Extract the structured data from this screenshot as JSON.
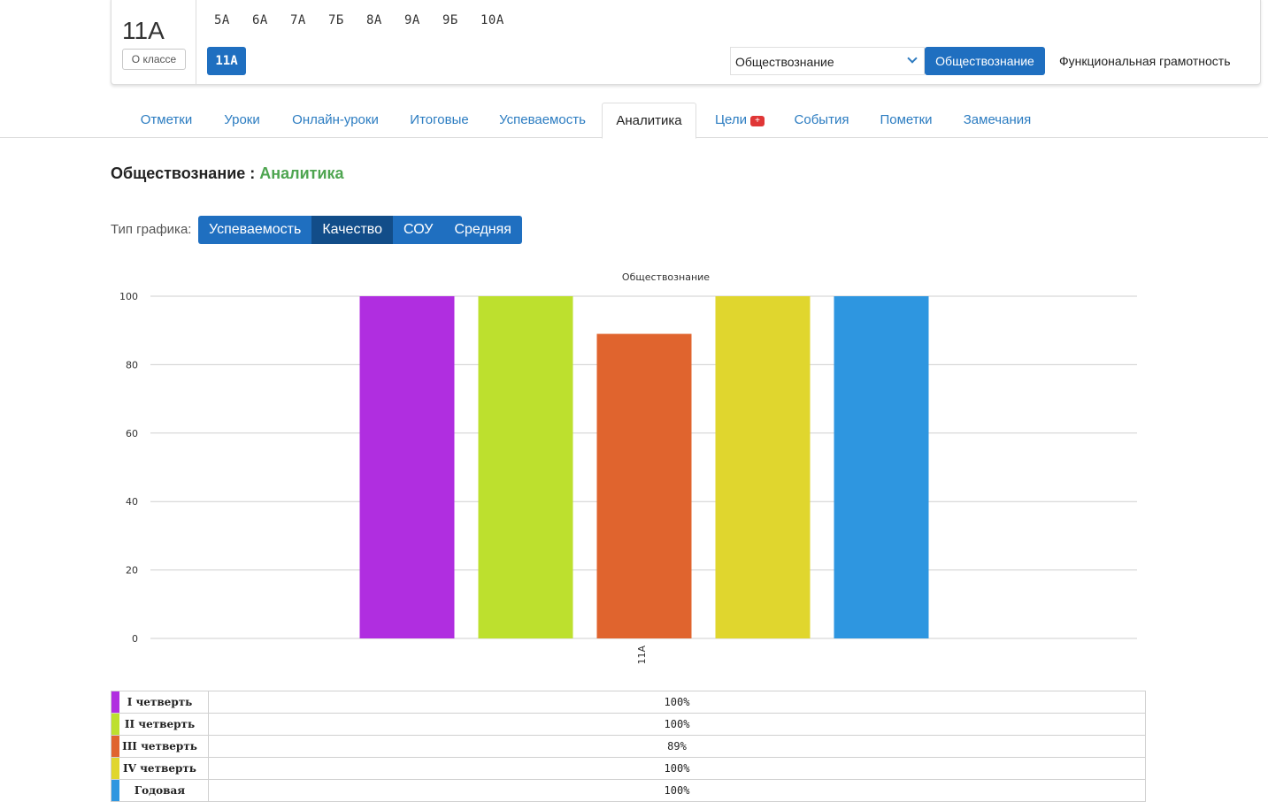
{
  "header": {
    "class_title": "11А",
    "about_button": "О классе",
    "classes": [
      "5А",
      "6А",
      "7А",
      "7Б",
      "8А",
      "9А",
      "9Б",
      "10А"
    ],
    "active_class": "11А",
    "subject_select": "Обществознание",
    "subject_button": "Обществознание",
    "subject_link": "Функциональная грамотность"
  },
  "tabs": [
    "Отметки",
    "Уроки",
    "Онлайн-уроки",
    "Итоговые",
    "Успеваемость",
    "Аналитика",
    "Цели",
    "События",
    "Пометки",
    "Замечания"
  ],
  "active_tab": "Аналитика",
  "page": {
    "title_subject": "Обществознание :",
    "title_section": "Аналитика",
    "chart_type_label": "Тип графика:",
    "chart_types": [
      "Успеваемость",
      "Качество",
      "СОУ",
      "Средняя"
    ],
    "selected_chart_type": "Качество"
  },
  "chart_data": {
    "type": "bar",
    "title": "Обществознание",
    "categories": [
      "11А"
    ],
    "series": [
      {
        "name": "I четверть",
        "values": [
          100
        ],
        "color": "#b02ee0"
      },
      {
        "name": "II четверть",
        "values": [
          100
        ],
        "color": "#bde02e"
      },
      {
        "name": "III четверть",
        "values": [
          89
        ],
        "color": "#e0642e"
      },
      {
        "name": "IV четверть",
        "values": [
          100
        ],
        "color": "#e0d62e"
      },
      {
        "name": "Годовая",
        "values": [
          100
        ],
        "color": "#2e96e0"
      }
    ],
    "ylim": [
      0,
      100
    ],
    "yticks": [
      0,
      20,
      40,
      60,
      80,
      100
    ],
    "grid": true
  },
  "legend_table": [
    {
      "name": "I четверть",
      "value": "100%"
    },
    {
      "name": "II четверть",
      "value": "100%"
    },
    {
      "name": "III четверть",
      "value": "89%"
    },
    {
      "name": "IV четверть",
      "value": "100%"
    },
    {
      "name": "Годовая",
      "value": "100%"
    }
  ]
}
